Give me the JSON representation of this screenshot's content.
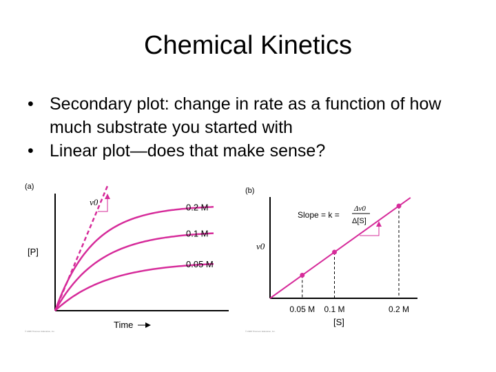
{
  "slide": {
    "title": "Chemical Kinetics",
    "bullets": [
      "Secondary plot: change in rate as a function of how much substrate you started with",
      "Linear plot—does that make sense?"
    ]
  },
  "colors": {
    "curve": "#d62b9a",
    "axis": "#000000"
  },
  "chart_data": [
    {
      "type": "line",
      "panel_label": "(a)",
      "xlabel": "Time",
      "ylabel": "[P]",
      "annotation": "v0",
      "series": [
        {
          "name": "0.2 M",
          "final_level": 0.9
        },
        {
          "name": "0.1 M",
          "final_level": 0.68
        },
        {
          "name": "0.05 M",
          "final_level": 0.42
        }
      ],
      "credit": "© 2008 Thomson Education, Inc."
    },
    {
      "type": "scatter",
      "panel_label": "(b)",
      "xlabel": "[S]",
      "ylabel": "v0",
      "categories": [
        "0.05 M",
        "0.1 M",
        "0.2 M"
      ],
      "x": [
        0.05,
        0.1,
        0.2
      ],
      "y": [
        0.25,
        0.5,
        1.0
      ],
      "fit": "linear",
      "slope_label_lhs": "Slope = k =",
      "slope_num": "Δv0",
      "slope_den": "Δ[S]",
      "credit": "© 2008 Thomson Education, Inc."
    }
  ]
}
